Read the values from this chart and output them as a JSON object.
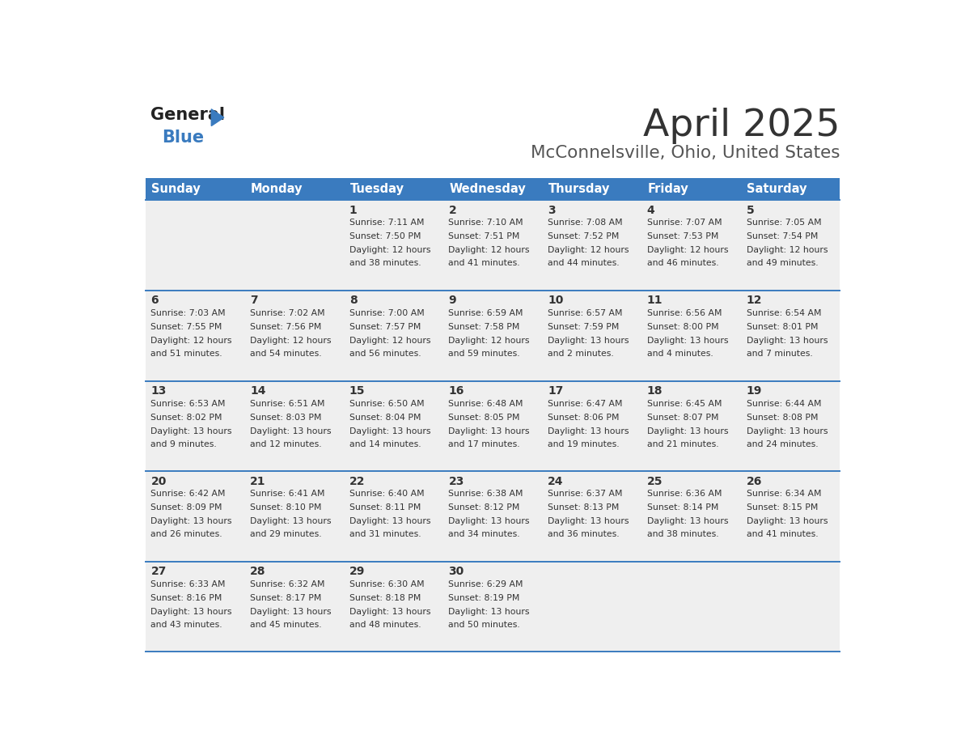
{
  "title": "April 2025",
  "subtitle": "McConnelsville, Ohio, United States",
  "days_of_week": [
    "Sunday",
    "Monday",
    "Tuesday",
    "Wednesday",
    "Thursday",
    "Friday",
    "Saturday"
  ],
  "header_bg": "#3a7bbf",
  "header_text": "#ffffff",
  "cell_bg_light": "#efefef",
  "border_color": "#3a7bbf",
  "text_color": "#333333",
  "title_color": "#333333",
  "subtitle_color": "#555555",
  "logo_black": "#222222",
  "logo_blue": "#3a7bbf",
  "weeks": [
    [
      {
        "day": "",
        "sunrise": "",
        "sunset": "",
        "daylight1": "",
        "daylight2": ""
      },
      {
        "day": "",
        "sunrise": "",
        "sunset": "",
        "daylight1": "",
        "daylight2": ""
      },
      {
        "day": "1",
        "sunrise": "Sunrise: 7:11 AM",
        "sunset": "Sunset: 7:50 PM",
        "daylight1": "Daylight: 12 hours",
        "daylight2": "and 38 minutes."
      },
      {
        "day": "2",
        "sunrise": "Sunrise: 7:10 AM",
        "sunset": "Sunset: 7:51 PM",
        "daylight1": "Daylight: 12 hours",
        "daylight2": "and 41 minutes."
      },
      {
        "day": "3",
        "sunrise": "Sunrise: 7:08 AM",
        "sunset": "Sunset: 7:52 PM",
        "daylight1": "Daylight: 12 hours",
        "daylight2": "and 44 minutes."
      },
      {
        "day": "4",
        "sunrise": "Sunrise: 7:07 AM",
        "sunset": "Sunset: 7:53 PM",
        "daylight1": "Daylight: 12 hours",
        "daylight2": "and 46 minutes."
      },
      {
        "day": "5",
        "sunrise": "Sunrise: 7:05 AM",
        "sunset": "Sunset: 7:54 PM",
        "daylight1": "Daylight: 12 hours",
        "daylight2": "and 49 minutes."
      }
    ],
    [
      {
        "day": "6",
        "sunrise": "Sunrise: 7:03 AM",
        "sunset": "Sunset: 7:55 PM",
        "daylight1": "Daylight: 12 hours",
        "daylight2": "and 51 minutes."
      },
      {
        "day": "7",
        "sunrise": "Sunrise: 7:02 AM",
        "sunset": "Sunset: 7:56 PM",
        "daylight1": "Daylight: 12 hours",
        "daylight2": "and 54 minutes."
      },
      {
        "day": "8",
        "sunrise": "Sunrise: 7:00 AM",
        "sunset": "Sunset: 7:57 PM",
        "daylight1": "Daylight: 12 hours",
        "daylight2": "and 56 minutes."
      },
      {
        "day": "9",
        "sunrise": "Sunrise: 6:59 AM",
        "sunset": "Sunset: 7:58 PM",
        "daylight1": "Daylight: 12 hours",
        "daylight2": "and 59 minutes."
      },
      {
        "day": "10",
        "sunrise": "Sunrise: 6:57 AM",
        "sunset": "Sunset: 7:59 PM",
        "daylight1": "Daylight: 13 hours",
        "daylight2": "and 2 minutes."
      },
      {
        "day": "11",
        "sunrise": "Sunrise: 6:56 AM",
        "sunset": "Sunset: 8:00 PM",
        "daylight1": "Daylight: 13 hours",
        "daylight2": "and 4 minutes."
      },
      {
        "day": "12",
        "sunrise": "Sunrise: 6:54 AM",
        "sunset": "Sunset: 8:01 PM",
        "daylight1": "Daylight: 13 hours",
        "daylight2": "and 7 minutes."
      }
    ],
    [
      {
        "day": "13",
        "sunrise": "Sunrise: 6:53 AM",
        "sunset": "Sunset: 8:02 PM",
        "daylight1": "Daylight: 13 hours",
        "daylight2": "and 9 minutes."
      },
      {
        "day": "14",
        "sunrise": "Sunrise: 6:51 AM",
        "sunset": "Sunset: 8:03 PM",
        "daylight1": "Daylight: 13 hours",
        "daylight2": "and 12 minutes."
      },
      {
        "day": "15",
        "sunrise": "Sunrise: 6:50 AM",
        "sunset": "Sunset: 8:04 PM",
        "daylight1": "Daylight: 13 hours",
        "daylight2": "and 14 minutes."
      },
      {
        "day": "16",
        "sunrise": "Sunrise: 6:48 AM",
        "sunset": "Sunset: 8:05 PM",
        "daylight1": "Daylight: 13 hours",
        "daylight2": "and 17 minutes."
      },
      {
        "day": "17",
        "sunrise": "Sunrise: 6:47 AM",
        "sunset": "Sunset: 8:06 PM",
        "daylight1": "Daylight: 13 hours",
        "daylight2": "and 19 minutes."
      },
      {
        "day": "18",
        "sunrise": "Sunrise: 6:45 AM",
        "sunset": "Sunset: 8:07 PM",
        "daylight1": "Daylight: 13 hours",
        "daylight2": "and 21 minutes."
      },
      {
        "day": "19",
        "sunrise": "Sunrise: 6:44 AM",
        "sunset": "Sunset: 8:08 PM",
        "daylight1": "Daylight: 13 hours",
        "daylight2": "and 24 minutes."
      }
    ],
    [
      {
        "day": "20",
        "sunrise": "Sunrise: 6:42 AM",
        "sunset": "Sunset: 8:09 PM",
        "daylight1": "Daylight: 13 hours",
        "daylight2": "and 26 minutes."
      },
      {
        "day": "21",
        "sunrise": "Sunrise: 6:41 AM",
        "sunset": "Sunset: 8:10 PM",
        "daylight1": "Daylight: 13 hours",
        "daylight2": "and 29 minutes."
      },
      {
        "day": "22",
        "sunrise": "Sunrise: 6:40 AM",
        "sunset": "Sunset: 8:11 PM",
        "daylight1": "Daylight: 13 hours",
        "daylight2": "and 31 minutes."
      },
      {
        "day": "23",
        "sunrise": "Sunrise: 6:38 AM",
        "sunset": "Sunset: 8:12 PM",
        "daylight1": "Daylight: 13 hours",
        "daylight2": "and 34 minutes."
      },
      {
        "day": "24",
        "sunrise": "Sunrise: 6:37 AM",
        "sunset": "Sunset: 8:13 PM",
        "daylight1": "Daylight: 13 hours",
        "daylight2": "and 36 minutes."
      },
      {
        "day": "25",
        "sunrise": "Sunrise: 6:36 AM",
        "sunset": "Sunset: 8:14 PM",
        "daylight1": "Daylight: 13 hours",
        "daylight2": "and 38 minutes."
      },
      {
        "day": "26",
        "sunrise": "Sunrise: 6:34 AM",
        "sunset": "Sunset: 8:15 PM",
        "daylight1": "Daylight: 13 hours",
        "daylight2": "and 41 minutes."
      }
    ],
    [
      {
        "day": "27",
        "sunrise": "Sunrise: 6:33 AM",
        "sunset": "Sunset: 8:16 PM",
        "daylight1": "Daylight: 13 hours",
        "daylight2": "and 43 minutes."
      },
      {
        "day": "28",
        "sunrise": "Sunrise: 6:32 AM",
        "sunset": "Sunset: 8:17 PM",
        "daylight1": "Daylight: 13 hours",
        "daylight2": "and 45 minutes."
      },
      {
        "day": "29",
        "sunrise": "Sunrise: 6:30 AM",
        "sunset": "Sunset: 8:18 PM",
        "daylight1": "Daylight: 13 hours",
        "daylight2": "and 48 minutes."
      },
      {
        "day": "30",
        "sunrise": "Sunrise: 6:29 AM",
        "sunset": "Sunset: 8:19 PM",
        "daylight1": "Daylight: 13 hours",
        "daylight2": "and 50 minutes."
      },
      {
        "day": "",
        "sunrise": "",
        "sunset": "",
        "daylight1": "",
        "daylight2": ""
      },
      {
        "day": "",
        "sunrise": "",
        "sunset": "",
        "daylight1": "",
        "daylight2": ""
      },
      {
        "day": "",
        "sunrise": "",
        "sunset": "",
        "daylight1": "",
        "daylight2": ""
      }
    ]
  ]
}
